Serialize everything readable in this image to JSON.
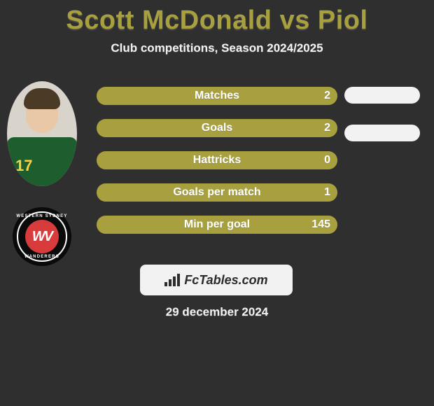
{
  "colors": {
    "background": "#2f2f2f",
    "title": "#a8a03e",
    "subtitle": "#f2f2f2",
    "stat_bg": "#a8a03e",
    "stat_fill": "#a8a03e",
    "stat_text": "#ffffff",
    "pill": "#f2f2f2",
    "brand_bg": "#f2f2f2",
    "brand_text": "#2c2c2c",
    "date_text": "#f2f2f2"
  },
  "header": {
    "title": "Scott McDonald vs Piol",
    "subtitle": "Club competitions, Season 2024/2025"
  },
  "player": {
    "jersey_number": "17"
  },
  "club": {
    "monogram": "WV",
    "top_text": "WESTERN SYDNEY",
    "bottom_text": "WANDERERS"
  },
  "stats": [
    {
      "label": "Matches",
      "value": "2",
      "fill_pct": 100
    },
    {
      "label": "Goals",
      "value": "2",
      "fill_pct": 100
    },
    {
      "label": "Hattricks",
      "value": "0",
      "fill_pct": 100
    },
    {
      "label": "Goals per match",
      "value": "1",
      "fill_pct": 100
    },
    {
      "label": "Min per goal",
      "value": "145",
      "fill_pct": 100
    }
  ],
  "right_pills_count": 2,
  "brand": {
    "text": "FcTables.com"
  },
  "date": "29 december 2024"
}
